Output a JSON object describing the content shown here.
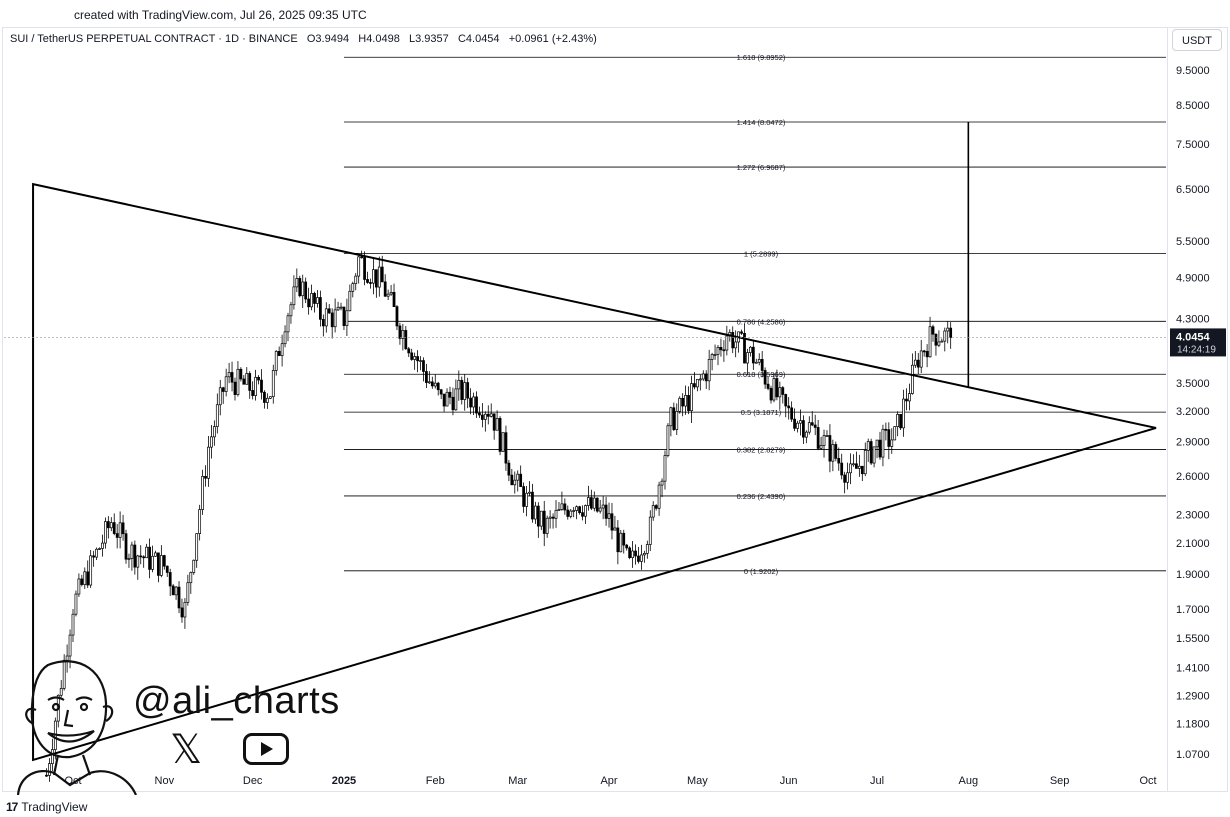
{
  "header": {
    "created": "created with TradingView.com, Jul 26, 2025 09:35 UTC"
  },
  "legend": {
    "symbol": "SUI / TetherUS PERPETUAL CONTRACT · 1D · BINANCE",
    "o": "O3.9494",
    "h": "H4.0498",
    "l": "L3.9357",
    "c": "C4.0454",
    "change": "+0.0961 (+2.43%)"
  },
  "currency": "USDT",
  "footer": {
    "brand": "TradingView"
  },
  "watermark": {
    "handle": "@ali_charts",
    "x_icon": "x-logo-icon",
    "yt_icon": "youtube-icon"
  },
  "colors": {
    "up": "#26a69a",
    "candle_drawn": "#000000",
    "lines": "#000000",
    "grid": "#e0e3eb",
    "price_label_bg": "#131722"
  },
  "chart_data": {
    "type": "candlestick",
    "title": "SUI / TetherUS PERPETUAL CONTRACT · 1D · BINANCE",
    "scale": "log",
    "ylim": [
      1.0,
      11.0
    ],
    "y_ticks": [
      "9.5000",
      "8.5000",
      "7.5000",
      "6.5000",
      "5.5000",
      "4.9000",
      "4.3000",
      "3.5000",
      "3.2000",
      "2.9000",
      "2.6000",
      "2.3000",
      "2.1000",
      "1.9000",
      "1.7000",
      "1.5500",
      "1.4100",
      "1.2900",
      "1.1800",
      "1.0700"
    ],
    "x_ticks": [
      "Oct",
      "Nov",
      "Dec",
      "2025",
      "Feb",
      "Mar",
      "Apr",
      "May",
      "Jun",
      "Jul",
      "Aug",
      "Sep",
      "Oct"
    ],
    "last_price": "4.0454",
    "countdown": "14:24:19",
    "fib_levels": [
      {
        "label": "1.618 (9.8952)",
        "value": 9.8952
      },
      {
        "label": "1.414 (8.0472)",
        "value": 8.0472
      },
      {
        "label": "1.272 (6.9687)",
        "value": 6.9687
      },
      {
        "label": "1 (5.2899)",
        "value": 5.2899
      },
      {
        "label": "0.786 (4.2586)",
        "value": 4.2586
      },
      {
        "label": "0.618 (3.5969)",
        "value": 3.5969
      },
      {
        "label": "0.5 (3.1871)",
        "value": 3.1871
      },
      {
        "label": "0.382 (2.8279)",
        "value": 2.8279
      },
      {
        "label": "0.236 (2.4390)",
        "value": 2.439
      },
      {
        "label": "0 (1.9202)",
        "value": 1.9202
      }
    ],
    "triangle": {
      "upper_start": {
        "date": "2024-09-30",
        "price": 6.6
      },
      "apex": {
        "date": "2025-10-01",
        "price": 3.03
      },
      "lower_start": {
        "date": "2024-09-30",
        "price": 1.05
      }
    },
    "target_line": {
      "date": "2025-08-01",
      "from": 3.45,
      "to": 8.0472
    },
    "close_anchors": [
      {
        "date": "2024-09-22",
        "close": 1.0
      },
      {
        "date": "2024-10-01",
        "close": 1.72
      },
      {
        "date": "2024-10-14",
        "close": 2.25
      },
      {
        "date": "2024-10-20",
        "close": 2.05
      },
      {
        "date": "2024-11-01",
        "close": 1.95
      },
      {
        "date": "2024-11-08",
        "close": 1.7
      },
      {
        "date": "2024-11-16",
        "close": 2.85
      },
      {
        "date": "2024-11-22",
        "close": 3.55
      },
      {
        "date": "2024-11-30",
        "close": 3.45
      },
      {
        "date": "2024-12-07",
        "close": 3.4
      },
      {
        "date": "2024-12-12",
        "close": 4.3
      },
      {
        "date": "2024-12-17",
        "close": 4.8
      },
      {
        "date": "2024-12-24",
        "close": 4.35
      },
      {
        "date": "2025-01-01",
        "close": 4.3
      },
      {
        "date": "2025-01-06",
        "close": 5.2
      },
      {
        "date": "2025-01-14",
        "close": 4.8
      },
      {
        "date": "2025-01-20",
        "close": 4.2
      },
      {
        "date": "2025-01-27",
        "close": 3.7
      },
      {
        "date": "2025-02-03",
        "close": 3.3
      },
      {
        "date": "2025-02-10",
        "close": 3.4
      },
      {
        "date": "2025-02-20",
        "close": 3.2
      },
      {
        "date": "2025-02-28",
        "close": 2.55
      },
      {
        "date": "2025-03-10",
        "close": 2.2
      },
      {
        "date": "2025-03-20",
        "close": 2.4
      },
      {
        "date": "2025-03-31",
        "close": 2.3
      },
      {
        "date": "2025-04-08",
        "close": 1.95
      },
      {
        "date": "2025-04-15",
        "close": 2.2
      },
      {
        "date": "2025-04-22",
        "close": 3.1
      },
      {
        "date": "2025-04-30",
        "close": 3.4
      },
      {
        "date": "2025-05-11",
        "close": 4.1
      },
      {
        "date": "2025-05-20",
        "close": 3.8
      },
      {
        "date": "2025-05-31",
        "close": 3.2
      },
      {
        "date": "2025-06-10",
        "close": 3.0
      },
      {
        "date": "2025-06-22",
        "close": 2.6
      },
      {
        "date": "2025-06-30",
        "close": 2.85
      },
      {
        "date": "2025-07-07",
        "close": 2.95
      },
      {
        "date": "2025-07-15",
        "close": 3.8
      },
      {
        "date": "2025-07-20",
        "close": 4.1
      },
      {
        "date": "2025-07-26",
        "close": 4.0454
      }
    ]
  }
}
